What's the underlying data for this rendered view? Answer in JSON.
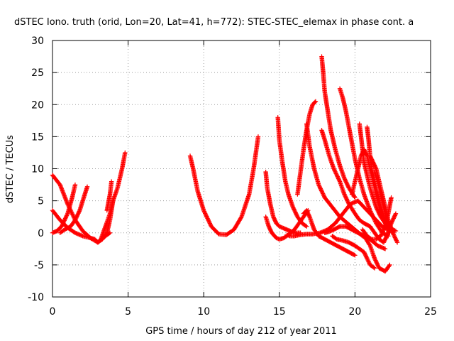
{
  "chart_data": {
    "type": "scatter",
    "title": "dSTEC Iono. truth (orid, Lon=20, Lat=41, h=772): STEC-STEC_elemax in phase cont. a",
    "xlabel": "GPS time / hours of day 212 of year 2011",
    "ylabel": "dSTEC  / TECUs",
    "xlim": [
      0,
      25
    ],
    "ylim": [
      -10,
      30
    ],
    "x_ticks": [
      0,
      5,
      10,
      15,
      20,
      25
    ],
    "y_ticks": [
      -10,
      -5,
      0,
      5,
      10,
      15,
      20,
      25,
      30
    ],
    "x_tick_labels": [
      "0",
      "5",
      "10",
      "15",
      "20",
      "25"
    ],
    "y_tick_labels": [
      "-10",
      "-5",
      "0",
      "5",
      "10",
      "15",
      "20",
      "25",
      "30"
    ],
    "grid": true,
    "marker": "plus",
    "color": "#ff0000",
    "series": [
      {
        "x": [
          0.0,
          0.5,
          1.0,
          1.5,
          2.0,
          2.5,
          3.0,
          3.5,
          3.8
        ],
        "y": [
          9.0,
          7.5,
          4.5,
          2.0,
          0.3,
          -0.8,
          -1.5,
          -0.5,
          0.0
        ]
      },
      {
        "x": [
          0.0,
          0.5,
          1.0,
          1.5,
          2.0,
          2.5,
          2.8,
          3.0,
          3.3,
          3.6,
          3.8,
          4.0
        ],
        "y": [
          3.5,
          2.0,
          0.8,
          0.0,
          -0.5,
          -0.8,
          -1.0,
          -1.5,
          -1.0,
          0.0,
          2.0,
          5.0
        ]
      },
      {
        "x": [
          0.0,
          0.3,
          0.6,
          1.0,
          1.3,
          1.5
        ],
        "y": [
          0.0,
          0.3,
          1.0,
          3.0,
          5.5,
          7.5
        ]
      },
      {
        "x": [
          0.5,
          0.8,
          1.2,
          1.5,
          1.8,
          2.0,
          2.3
        ],
        "y": [
          0.0,
          0.5,
          1.0,
          2.0,
          3.5,
          5.0,
          7.2
        ]
      },
      {
        "x": [
          3.0,
          3.2,
          3.5,
          3.8,
          4.0,
          4.3,
          4.6,
          4.8
        ],
        "y": [
          -1.5,
          -1.0,
          1.0,
          3.0,
          5.0,
          7.0,
          10.0,
          12.5
        ]
      },
      {
        "x": [
          3.6,
          3.8,
          3.9
        ],
        "y": [
          3.5,
          6.0,
          8.0
        ]
      },
      {
        "x": [
          9.1,
          9.3,
          9.6,
          10.0,
          10.5,
          11.0,
          11.5,
          12.0,
          12.5,
          13.0,
          13.3,
          13.6
        ],
        "y": [
          12.0,
          10.0,
          6.5,
          3.5,
          1.0,
          -0.2,
          -0.3,
          0.5,
          2.5,
          6.0,
          10.0,
          15.0
        ]
      },
      {
        "x": [
          14.1,
          14.2,
          14.4,
          14.6,
          14.8,
          15.0,
          15.2,
          15.5,
          15.8,
          16.1,
          16.4
        ],
        "y": [
          9.5,
          7.0,
          4.5,
          2.5,
          1.5,
          1.0,
          0.8,
          0.5,
          0.2,
          0.0,
          0.0
        ]
      },
      {
        "x": [
          14.1,
          14.3,
          14.5,
          14.8,
          15.0,
          15.3,
          15.6,
          16.0,
          16.3,
          16.6,
          16.9
        ],
        "y": [
          2.5,
          1.0,
          0.0,
          -0.8,
          -1.0,
          -0.8,
          -0.3,
          0.5,
          1.5,
          2.5,
          3.5
        ]
      },
      {
        "x": [
          14.9,
          15.0,
          15.2,
          15.4,
          15.6,
          15.9,
          16.2,
          16.5,
          16.8
        ],
        "y": [
          18.0,
          14.5,
          11.0,
          8.0,
          6.0,
          4.0,
          2.5,
          1.5,
          1.0
        ]
      },
      {
        "x": [
          15.5,
          15.7,
          16.0,
          16.4,
          16.8,
          17.2,
          17.7,
          18.2,
          18.7,
          19.2,
          19.7,
          20.2,
          20.6,
          21.0,
          21.4,
          21.8,
          22.2
        ],
        "y": [
          -0.3,
          -0.5,
          -0.5,
          -0.3,
          -0.2,
          -0.2,
          0.0,
          0.5,
          1.5,
          3.0,
          4.5,
          5.0,
          4.0,
          3.0,
          2.0,
          1.0,
          0.5
        ]
      },
      {
        "x": [
          16.2,
          16.4,
          16.6,
          16.8,
          17.0,
          17.2,
          17.4
        ],
        "y": [
          6.0,
          9.5,
          13.0,
          16.0,
          18.5,
          20.0,
          20.5
        ]
      },
      {
        "x": [
          16.8,
          17.0,
          17.3,
          17.6,
          18.0,
          18.5,
          19.0,
          19.5,
          20.0,
          20.5,
          21.0,
          21.5,
          22.0
        ],
        "y": [
          17.0,
          13.5,
          10.0,
          7.5,
          5.5,
          4.0,
          2.5,
          1.5,
          0.5,
          -0.5,
          -1.0,
          -2.0,
          -2.5
        ]
      },
      {
        "x": [
          16.6,
          16.8,
          17.0,
          17.3,
          17.6,
          18.0,
          18.4,
          18.8,
          19.2,
          19.6,
          20.0
        ],
        "y": [
          3.0,
          3.5,
          2.5,
          0.5,
          -0.5,
          -1.0,
          -1.5,
          -2.0,
          -2.5,
          -3.0,
          -3.5
        ]
      },
      {
        "x": [
          17.8,
          17.9,
          18.0,
          18.2,
          18.4,
          18.7,
          19.0,
          19.3,
          19.6,
          20.0
        ],
        "y": [
          27.5,
          25.0,
          22.0,
          19.0,
          16.0,
          13.0,
          10.5,
          8.5,
          7.0,
          5.5
        ]
      },
      {
        "x": [
          17.8,
          18.0,
          18.3,
          18.6,
          19.0,
          19.3,
          19.6,
          20.0,
          20.3,
          20.6,
          21.0
        ],
        "y": [
          16.0,
          14.5,
          12.0,
          10.0,
          8.0,
          6.0,
          4.5,
          3.0,
          2.0,
          1.5,
          1.0
        ]
      },
      {
        "x": [
          19.0,
          19.2,
          19.4,
          19.6,
          19.8,
          20.0,
          20.3,
          20.6,
          21.0,
          21.4,
          21.8,
          22.2
        ],
        "y": [
          22.5,
          21.0,
          19.0,
          16.5,
          14.0,
          11.5,
          8.5,
          6.0,
          3.5,
          1.5,
          0.0,
          -0.5
        ]
      },
      {
        "x": [
          18.0,
          18.3,
          18.6,
          19.0,
          19.4,
          19.8,
          20.2,
          20.6,
          21.0,
          21.3,
          21.6,
          22.0,
          22.3
        ],
        "y": [
          0.0,
          0.2,
          0.5,
          1.0,
          1.0,
          0.5,
          0.0,
          -0.5,
          -2.0,
          -4.0,
          -5.5,
          -6.0,
          -5.0
        ]
      },
      {
        "x": [
          18.5,
          18.8,
          19.2,
          19.6,
          20.0,
          20.3,
          20.6,
          21.0,
          21.3
        ],
        "y": [
          -0.5,
          -1.0,
          -1.2,
          -1.5,
          -2.0,
          -2.5,
          -3.0,
          -5.0,
          -5.5
        ]
      },
      {
        "x": [
          19.8,
          20.0,
          20.2,
          20.4,
          20.6,
          20.8,
          21.0,
          21.2,
          21.5,
          21.8,
          22.1
        ],
        "y": [
          6.0,
          8.0,
          10.0,
          12.0,
          13.0,
          12.0,
          10.0,
          8.0,
          5.0,
          2.5,
          1.0
        ]
      },
      {
        "x": [
          20.3,
          20.4,
          20.5,
          20.6,
          20.8,
          21.0,
          21.2,
          21.4,
          21.7,
          22.0,
          22.5
        ],
        "y": [
          17.0,
          15.0,
          13.0,
          11.0,
          9.0,
          7.0,
          5.5,
          4.0,
          2.5,
          1.5,
          0.5
        ]
      },
      {
        "x": [
          20.8,
          20.9,
          21.0,
          21.1,
          21.3,
          21.5,
          21.7,
          22.0,
          22.3
        ],
        "y": [
          16.5,
          14.5,
          12.0,
          10.0,
          8.0,
          6.0,
          4.0,
          2.0,
          0.0
        ]
      },
      {
        "x": [
          21.0,
          21.2,
          21.4,
          21.6,
          21.8,
          22.0,
          22.2,
          22.5,
          22.8
        ],
        "y": [
          12.0,
          11.0,
          10.0,
          8.0,
          6.0,
          4.0,
          2.0,
          0.0,
          -1.5
        ]
      },
      {
        "x": [
          21.3,
          21.5,
          21.7,
          21.9,
          22.1,
          22.3,
          22.5,
          22.7
        ],
        "y": [
          9.5,
          8.0,
          6.0,
          4.0,
          2.0,
          1.0,
          0.5,
          0.3
        ]
      },
      {
        "x": [
          20.5,
          20.8,
          21.1,
          21.4,
          21.7,
          22.0,
          22.2,
          22.4
        ],
        "y": [
          0.5,
          -0.5,
          -1.0,
          -1.0,
          -0.5,
          1.0,
          3.0,
          5.5
        ]
      },
      {
        "x": [
          21.0,
          21.3,
          21.6,
          21.9,
          22.1,
          22.4,
          22.7
        ],
        "y": [
          1.0,
          0.0,
          -1.0,
          -1.5,
          -0.5,
          1.5,
          3.0
        ]
      }
    ]
  }
}
